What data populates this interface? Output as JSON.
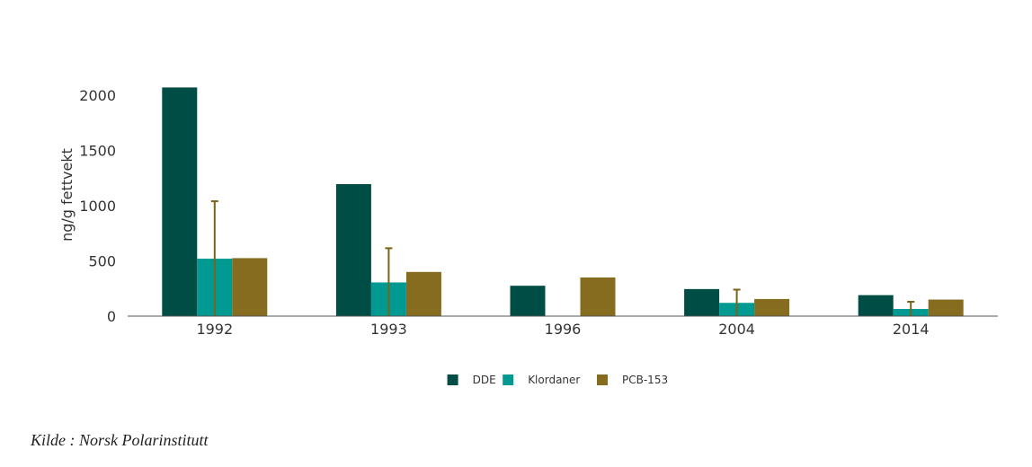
{
  "chart_data": {
    "type": "bar",
    "title": "",
    "xlabel": "",
    "ylabel": "ng/g fettvekt",
    "categories": [
      "1992",
      "1993",
      "1996",
      "2004",
      "2014"
    ],
    "ylim": [
      0,
      2100
    ],
    "yticks": [
      0,
      500,
      1000,
      1500,
      2000
    ],
    "grid": false,
    "legend_position": "bottom-center",
    "series": [
      {
        "name": "DDE",
        "color": "#004d45",
        "values": [
          2070,
          1195,
          275,
          245,
          190
        ],
        "error_upper": [
          null,
          null,
          null,
          null,
          null
        ]
      },
      {
        "name": "Klordaner",
        "color": "#009a93",
        "values": [
          520,
          305,
          null,
          120,
          65
        ],
        "error_upper": [
          1040,
          615,
          null,
          240,
          130
        ]
      },
      {
        "name": "PCB-153",
        "color": "#856c1e",
        "values": [
          525,
          400,
          350,
          155,
          150
        ],
        "error_upper": [
          null,
          null,
          null,
          null,
          null
        ]
      }
    ],
    "error_bar_color": "#7a6418"
  },
  "source": {
    "text": "Kilde : Norsk Polarinstitutt"
  }
}
